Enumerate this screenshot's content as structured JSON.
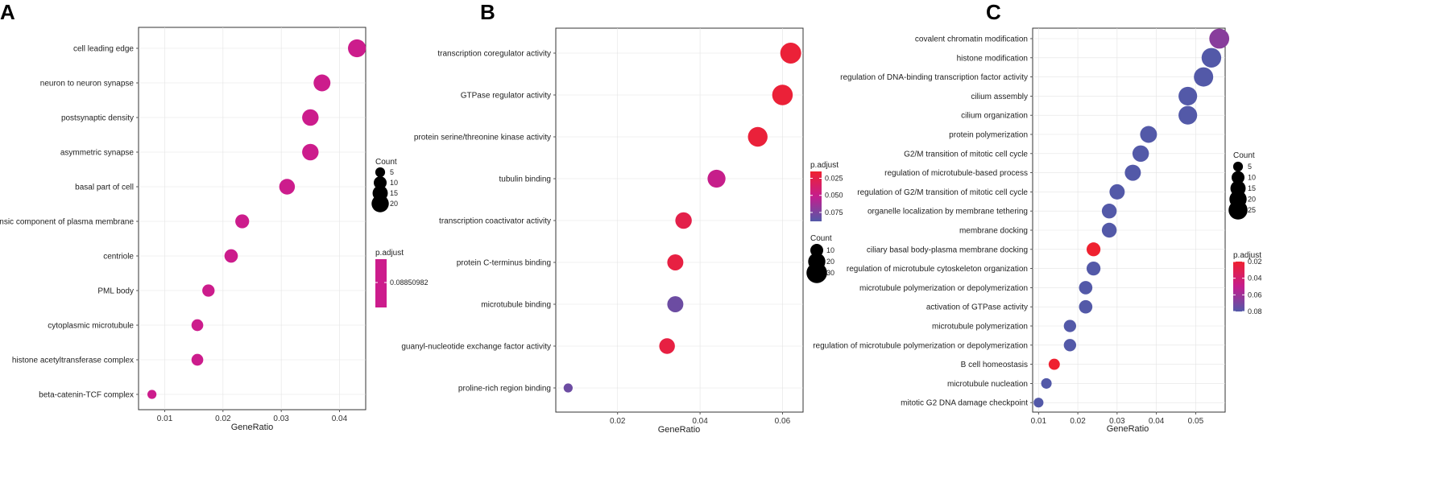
{
  "figure": {
    "panel_labels": [
      "A",
      "B",
      "C"
    ]
  },
  "chart_data": [
    {
      "type": "scatter",
      "panel": "A",
      "xlabel": "GeneRatio",
      "ylabel": "",
      "xlim": [
        0.0055,
        0.0445
      ],
      "xticks": [
        0.01,
        0.02,
        0.03,
        0.04
      ],
      "xtick_labels": [
        "0.01",
        "0.02",
        "0.03",
        "0.04"
      ],
      "categories": [
        "cell leading edge",
        "neuron to neuron synapse",
        "postsynaptic density",
        "asymmetric synapse",
        "basal part of cell",
        "extrinsic component of plasma membrane",
        "centriole",
        "PML body",
        "cytoplasmic microtubule",
        "histone acetyltransferase complex",
        "beta-catenin-TCF complex"
      ],
      "gene_ratio": [
        0.043,
        0.037,
        0.035,
        0.035,
        0.031,
        0.0233,
        0.0214,
        0.0175,
        0.0156,
        0.0156,
        0.0078
      ],
      "count": [
        22,
        19,
        18,
        18,
        16,
        12,
        11,
        9,
        8,
        8,
        4
      ],
      "p_adjust": [
        0.0885,
        0.0885,
        0.0885,
        0.0885,
        0.0885,
        0.0885,
        0.0885,
        0.0885,
        0.0885,
        0.0885,
        0.0885
      ],
      "legend": {
        "count_title": "Count",
        "count_values": [
          5,
          10,
          15,
          20
        ],
        "count_labels": [
          "5",
          "10",
          "15",
          "20"
        ],
        "padj_title": "p.adjust",
        "padj_labels": [
          "0.08850982"
        ],
        "padj_colors": [
          "#cc1c8c"
        ]
      }
    },
    {
      "type": "scatter",
      "panel": "B",
      "xlabel": "GeneRatio",
      "ylabel": "",
      "xlim": [
        0.005,
        0.065
      ],
      "xticks": [
        0.02,
        0.04,
        0.06
      ],
      "xtick_labels": [
        "0.02",
        "0.04",
        "0.06"
      ],
      "categories": [
        "transcription coregulator activity",
        "GTPase regulator activity",
        "protein serine/threonine kinase activity",
        "tubulin binding",
        "transcription coactivator activity",
        "protein C-terminus binding",
        "microtubule binding",
        "guanyl-nucleotide exchange factor activity",
        "proline-rich region binding"
      ],
      "gene_ratio": [
        0.062,
        0.06,
        0.054,
        0.044,
        0.036,
        0.034,
        0.034,
        0.032,
        0.008
      ],
      "count": [
        31,
        30,
        27,
        22,
        18,
        17,
        17,
        16,
        4
      ],
      "p_adjust": [
        0.018,
        0.018,
        0.019,
        0.05,
        0.025,
        0.022,
        0.08,
        0.022,
        0.08
      ],
      "legend": {
        "padj_title": "p.adjust",
        "padj_ticks": [
          0.025,
          0.05,
          0.075
        ],
        "padj_labels": [
          "0.025",
          "0.050",
          "0.075"
        ],
        "padj_range": [
          0.015,
          0.088
        ],
        "padj_colors": [
          "#ef2130",
          "#c41e8e",
          "#5359a8"
        ],
        "count_title": "Count",
        "count_values": [
          10,
          20,
          30
        ],
        "count_labels": [
          "10",
          "20",
          "30"
        ]
      }
    },
    {
      "type": "scatter",
      "panel": "C",
      "xlabel": "GeneRatio",
      "ylabel": "",
      "xlim": [
        0.0085,
        0.0575
      ],
      "xticks": [
        0.01,
        0.02,
        0.03,
        0.04,
        0.05
      ],
      "xtick_labels": [
        "0.01",
        "0.02",
        "0.03",
        "0.04",
        "0.05"
      ],
      "categories": [
        "covalent chromatin modification",
        "histone modification",
        "regulation of DNA-binding transcription factor activity",
        "cilium assembly",
        "cilium organization",
        "protein polymerization",
        "G2/M transition of mitotic cell cycle",
        "regulation of microtubule-based process",
        "regulation of G2/M transition of mitotic cell cycle",
        "organelle localization by membrane tethering",
        "membrane docking",
        "ciliary basal body-plasma membrane docking",
        "regulation of microtubule cytoskeleton organization",
        "microtubule polymerization or depolymerization",
        "activation of GTPase activity",
        "microtubule polymerization",
        "regulation of microtubule polymerization or depolymerization",
        "B cell homeostasis",
        "microtubule nucleation",
        "mitotic G2 DNA damage checkpoint"
      ],
      "gene_ratio": [
        0.056,
        0.054,
        0.052,
        0.048,
        0.048,
        0.038,
        0.036,
        0.034,
        0.03,
        0.028,
        0.028,
        0.024,
        0.024,
        0.022,
        0.022,
        0.018,
        0.018,
        0.014,
        0.012,
        0.01
      ],
      "count": [
        28,
        27,
        26,
        24,
        24,
        19,
        18,
        17,
        15,
        14,
        14,
        12,
        12,
        11,
        11,
        9,
        9,
        7,
        6,
        5
      ],
      "p_adjust": [
        0.066,
        0.08,
        0.08,
        0.08,
        0.08,
        0.08,
        0.08,
        0.08,
        0.08,
        0.08,
        0.08,
        0.02,
        0.08,
        0.08,
        0.08,
        0.08,
        0.08,
        0.02,
        0.08,
        0.08
      ],
      "legend": {
        "count_title": "Count",
        "count_values": [
          5,
          10,
          15,
          20,
          25
        ],
        "count_labels": [
          "5",
          "10",
          "15",
          "20",
          "25"
        ],
        "padj_title": "p.adjust",
        "padj_ticks": [
          0.02,
          0.04,
          0.06,
          0.08
        ],
        "padj_labels": [
          "0.02",
          "0.04",
          "0.06",
          "0.08"
        ],
        "padj_range": [
          0.02,
          0.08
        ],
        "padj_colors": [
          "#ef2130",
          "#c41e8e",
          "#5359a8"
        ]
      }
    }
  ]
}
